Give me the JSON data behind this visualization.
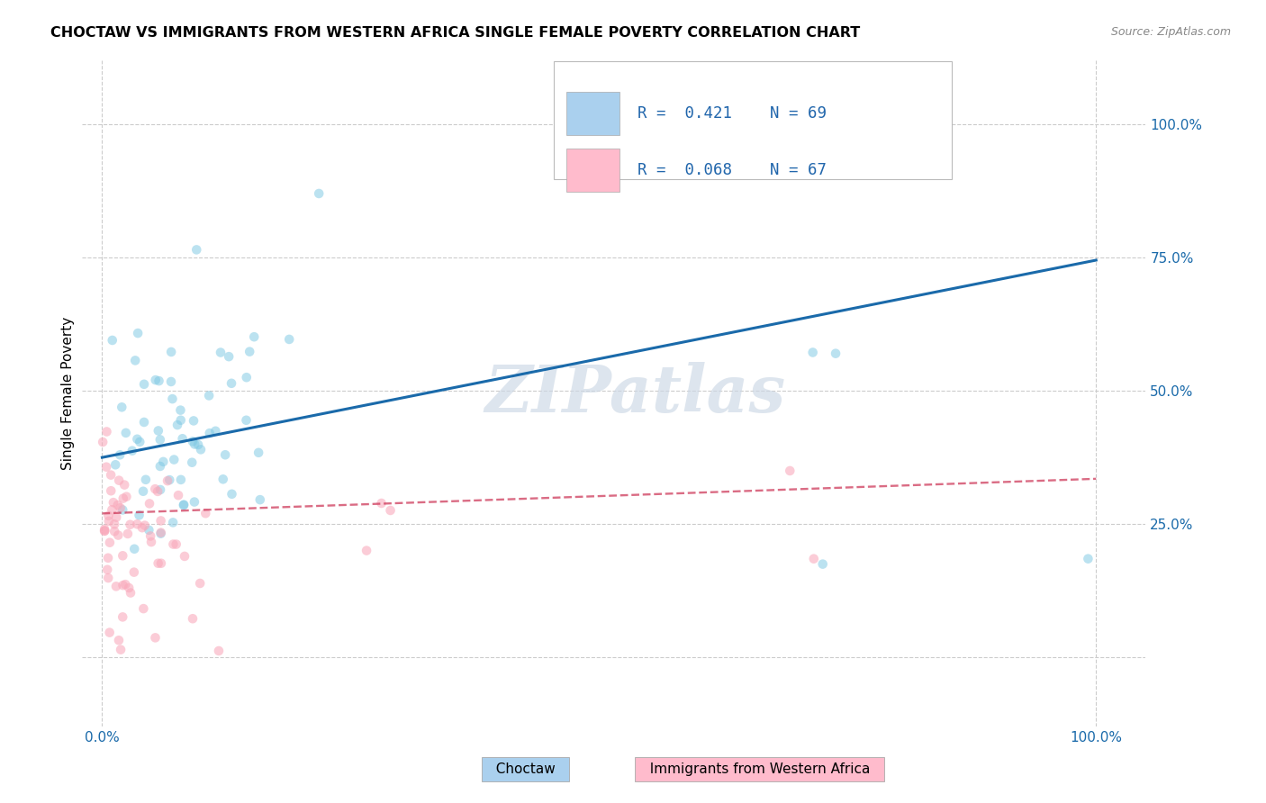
{
  "title": "CHOCTAW VS IMMIGRANTS FROM WESTERN AFRICA SINGLE FEMALE POVERTY CORRELATION CHART",
  "source": "Source: ZipAtlas.com",
  "ylabel": "Single Female Poverty",
  "series1_label": "Choctaw",
  "series2_label": "Immigrants from Western Africa",
  "series1_color": "#7ec8e3",
  "series2_color": "#f9a8ba",
  "trend1_color": "#1a6aaa",
  "trend2_color": "#cc3355",
  "legend_color1": "#aad0ee",
  "legend_color2": "#ffbbcc",
  "watermark": "ZIPatlas",
  "watermark_color": "#ccd8e5",
  "grid_color": "#cccccc",
  "ytick_vals": [
    0.0,
    0.25,
    0.5,
    0.75,
    1.0
  ],
  "ytick_right": [
    0.25,
    0.5,
    0.75,
    1.0
  ],
  "ytick_right_labels": [
    "25.0%",
    "50.0%",
    "75.0%",
    "100.0%"
  ],
  "xtick_vals": [
    0.0,
    1.0
  ],
  "xtick_labels": [
    "0.0%",
    "100.0%"
  ],
  "xlim": [
    -0.02,
    1.05
  ],
  "ylim": [
    -0.13,
    1.12
  ],
  "trend1_y0": 0.375,
  "trend1_y1": 0.745,
  "trend2_y0": 0.27,
  "trend2_y1": 0.335
}
